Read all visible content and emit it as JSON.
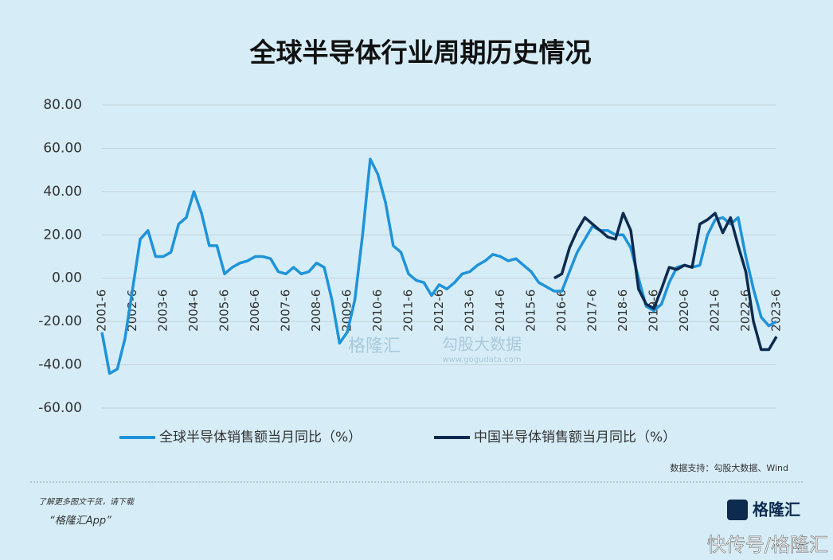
{
  "chart_data": {
    "type": "line",
    "title": "全球半导体行业周期历史情况",
    "categories": [
      "2001-6",
      null,
      null,
      null,
      "2002-6",
      null,
      null,
      null,
      "2003-6",
      null,
      null,
      null,
      "2004-6",
      null,
      null,
      null,
      "2005-6",
      null,
      null,
      null,
      "2006-6",
      null,
      null,
      null,
      "2007-6",
      null,
      null,
      null,
      "2008-6",
      null,
      null,
      null,
      "2009-6",
      null,
      null,
      null,
      "2010-6",
      null,
      null,
      null,
      "2011-6",
      null,
      null,
      null,
      "2012-6",
      null,
      null,
      null,
      "2013-6",
      null,
      null,
      null,
      "2014-6",
      null,
      null,
      null,
      "2015-6",
      null,
      null,
      null,
      "2016-6",
      null,
      null,
      null,
      "2017-6",
      null,
      null,
      null,
      "2018-6",
      null,
      null,
      null,
      "2019-6",
      null,
      null,
      null,
      "2020-6",
      null,
      null,
      null,
      "2021-6",
      null,
      null,
      null,
      "2022-6",
      null,
      null,
      null,
      "2023-6"
    ],
    "series": [
      {
        "name": "全球半导体销售额当月同比（%）",
        "color": "#1f93d9",
        "values": [
          -25,
          -44,
          -42,
          -28,
          -5,
          18,
          22,
          10,
          10,
          12,
          25,
          28,
          40,
          30,
          15,
          15,
          2,
          5,
          7,
          8,
          10,
          10,
          9,
          3,
          2,
          5,
          2,
          3,
          7,
          5,
          -10,
          -30,
          -25,
          -10,
          20,
          55,
          48,
          35,
          15,
          12,
          2,
          -1,
          -2,
          -8,
          -3,
          -5,
          -2,
          2,
          3,
          6,
          8,
          11,
          10,
          8,
          9,
          6,
          3,
          -2,
          -4,
          -6,
          -6,
          3,
          12,
          18,
          24,
          22,
          22,
          20,
          20,
          14,
          0,
          -13,
          -15,
          -12,
          -2,
          5,
          6,
          5,
          6,
          20,
          27,
          28,
          25,
          28,
          10,
          -5,
          -18,
          -22,
          -20
        ]
      },
      {
        "name": "中国半导体销售额当月同比（%）",
        "color": "#0d2a4f",
        "values": [
          null,
          null,
          null,
          null,
          null,
          null,
          null,
          null,
          null,
          null,
          null,
          null,
          null,
          null,
          null,
          null,
          null,
          null,
          null,
          null,
          null,
          null,
          null,
          null,
          null,
          null,
          null,
          null,
          null,
          null,
          null,
          null,
          null,
          null,
          null,
          null,
          null,
          null,
          null,
          null,
          null,
          null,
          null,
          null,
          null,
          null,
          null,
          null,
          null,
          null,
          null,
          null,
          null,
          null,
          null,
          null,
          null,
          null,
          null,
          0,
          2,
          14,
          22,
          28,
          25,
          22,
          19,
          18,
          30,
          22,
          -5,
          -12,
          -14,
          -5,
          5,
          4,
          6,
          5,
          25,
          27,
          30,
          21,
          28,
          15,
          3,
          -20,
          -33,
          -33,
          -27
        ]
      }
    ],
    "ylim": [
      -60,
      80
    ],
    "yticks": [
      {
        "value": 80,
        "label": "80.00"
      },
      {
        "value": 60,
        "label": "60.00"
      },
      {
        "value": 40,
        "label": "40.00"
      },
      {
        "value": 20,
        "label": "20.00"
      },
      {
        "value": 0,
        "label": "0.00"
      },
      {
        "value": -20,
        "label": "-20.00"
      },
      {
        "value": -40,
        "label": "-40.00"
      },
      {
        "value": -60,
        "label": "-60.00"
      }
    ],
    "grid": true,
    "source": "数据支持：勾股大数据、Wind"
  },
  "footer": {
    "note": "了解更多图文干货，请下载",
    "app": "“格隆汇App”",
    "logo": "格隆汇",
    "watermark": "快传号/格隆汇"
  },
  "watermarks": [
    "格隆汇",
    "勾股大数据",
    "www.gogudata.com"
  ]
}
